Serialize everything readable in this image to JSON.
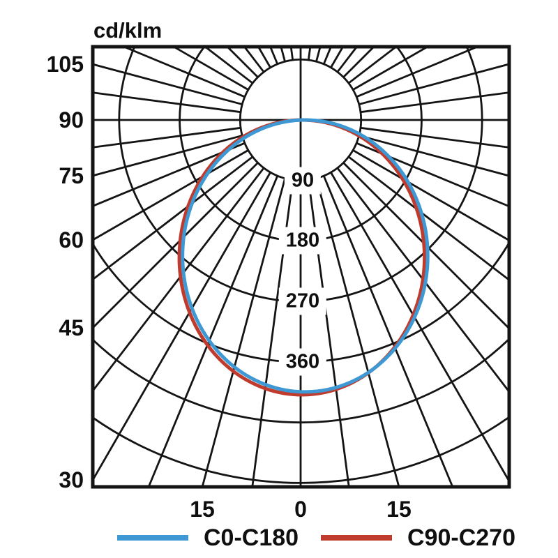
{
  "title": "cd/klm",
  "colors": {
    "c0": "#3d98d3",
    "c90": "#bf3b2d",
    "grid": "#141414",
    "text": "#0f0f0f"
  },
  "axis": {
    "left_labels": [
      {
        "text": "105",
        "gamma": 105
      },
      {
        "text": "90",
        "gamma": 90
      },
      {
        "text": "75",
        "gamma": 75
      },
      {
        "text": "60",
        "gamma": 60
      },
      {
        "text": "45",
        "gamma": 45
      },
      {
        "text": "30",
        "gamma": 30
      }
    ],
    "bottom_labels": [
      {
        "text": "15",
        "gamma": -15
      },
      {
        "text": "0",
        "gamma": 0
      },
      {
        "text": "15",
        "gamma": 15
      }
    ],
    "ring_labels": [
      {
        "text": "90",
        "value": 90
      },
      {
        "text": "180",
        "value": 180
      },
      {
        "text": "270",
        "value": 270
      },
      {
        "text": "360",
        "value": 360
      }
    ]
  },
  "legend": [
    {
      "label": "C0-C180",
      "color_key": "c0"
    },
    {
      "label": "C90-C270",
      "color_key": "c90"
    }
  ],
  "chart_data": {
    "type": "polar_photometric",
    "title": "cd/klm",
    "unit": "cd/klm",
    "gamma_deg": [
      0,
      15,
      30,
      45,
      60,
      75,
      90
    ],
    "series": [
      {
        "name": "C0-C180",
        "color": "#3d98d3",
        "values": [
          405,
          384,
          331,
          256,
          172,
          86,
          0
        ]
      },
      {
        "name": "C90-C270",
        "color": "#bf3b2d",
        "values": [
          409,
          388,
          334,
          259,
          175,
          89,
          0
        ]
      }
    ],
    "ring_values": [
      90,
      180,
      270,
      360,
      450,
      540
    ],
    "ring_labeled_values": [
      90,
      180,
      270,
      360
    ],
    "angle_grid_step_deg": 7.5,
    "angle_label_step_deg": 15,
    "angle_label_range_deg": [
      30,
      105
    ],
    "grid": true,
    "legend_position": "bottom",
    "ellipse_fit": [
      {
        "name": "C0-C180",
        "a": 182.4,
        "b": 202.3,
        "dx": 6.7
      },
      {
        "name": "C90-C270",
        "a": 182.4,
        "b": 204.4,
        "dx": 1.9
      }
    ]
  }
}
